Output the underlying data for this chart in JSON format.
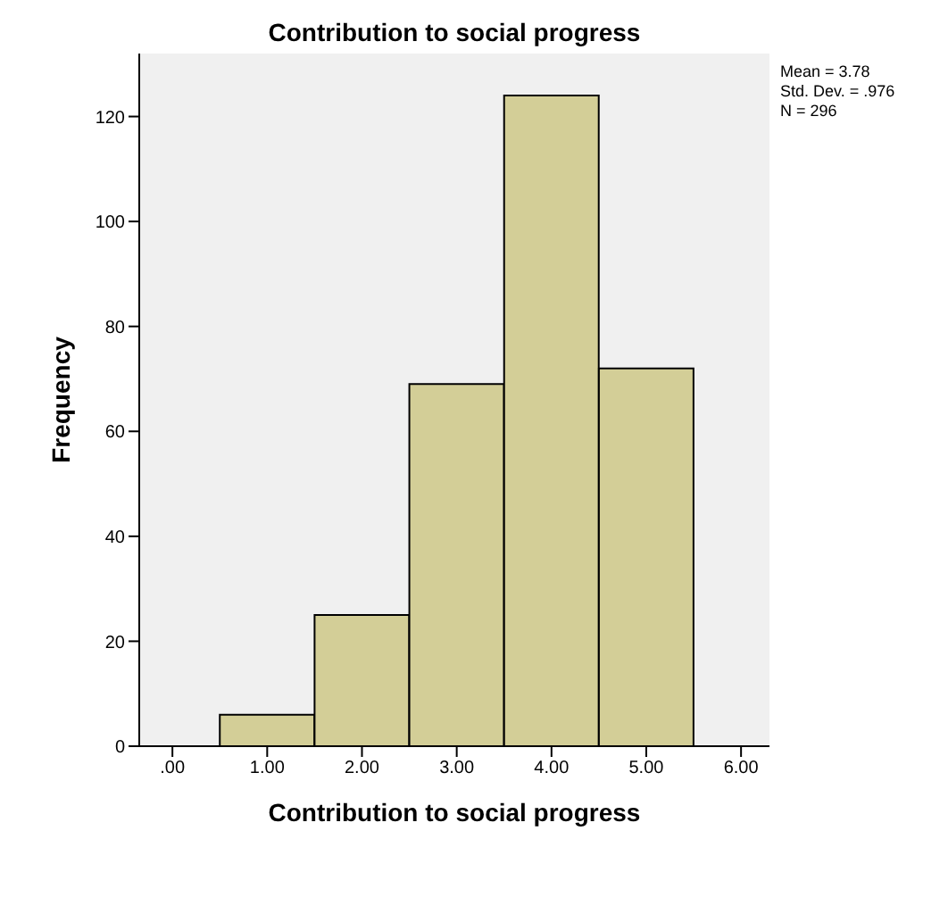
{
  "chart_data": {
    "type": "histogram",
    "title": "Contribution to social progress",
    "xlabel": "Contribution to social progress",
    "ylabel": "Frequency",
    "bins": [
      0.5,
      1.5,
      2.5,
      3.5,
      4.5,
      5.5
    ],
    "values": [
      6,
      25,
      69,
      124,
      72
    ],
    "color": "#d3ce97",
    "xlim": [
      -0.35,
      6.3
    ],
    "xticks": [
      {
        "value": 0,
        "label": ".00"
      },
      {
        "value": 1,
        "label": "1.00"
      },
      {
        "value": 2,
        "label": "2.00"
      },
      {
        "value": 3,
        "label": "3.00"
      },
      {
        "value": 4,
        "label": "4.00"
      },
      {
        "value": 5,
        "label": "5.00"
      },
      {
        "value": 6,
        "label": "6.00"
      }
    ],
    "ylim": [
      0,
      132
    ],
    "yticks": [
      0,
      20,
      40,
      60,
      80,
      100,
      120
    ],
    "annotations": [
      "Mean = 3.78",
      "Std. Dev. = .976",
      "N = 296"
    ],
    "grid": false
  }
}
